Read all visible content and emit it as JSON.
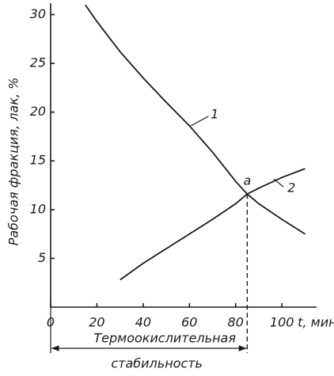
{
  "chart_data": {
    "type": "line",
    "x_label": "t, мин",
    "y_label": "Рабочая фракция, лак, %",
    "series": [
      {
        "name": "1",
        "color": "#1a1a1a",
        "x": [
          15,
          20,
          30,
          40,
          50,
          60,
          70,
          80,
          85,
          90,
          100,
          110
        ],
        "values": [
          31,
          29.3,
          26.2,
          23.5,
          21.0,
          18.6,
          15.9,
          12.9,
          11.6,
          10.6,
          9.0,
          7.5
        ]
      },
      {
        "name": "2",
        "color": "#1a1a1a",
        "x": [
          30,
          40,
          50,
          60,
          70,
          80,
          85,
          90,
          100,
          110
        ],
        "values": [
          2.8,
          4.5,
          6.0,
          7.5,
          9.0,
          10.6,
          11.6,
          12.2,
          13.3,
          14.2
        ]
      }
    ],
    "point": {
      "label": "a",
      "x": 85,
      "y": 11.6
    },
    "bracket_label": [
      "Термоокислительная",
      "стабильность"
    ],
    "xlim": [
      0,
      115
    ],
    "ylim": [
      0,
      31.5
    ],
    "xticks": [
      0,
      20,
      40,
      60,
      80,
      100
    ],
    "yticks": [
      5,
      10,
      15,
      20,
      25,
      30
    ],
    "grid": false
  }
}
